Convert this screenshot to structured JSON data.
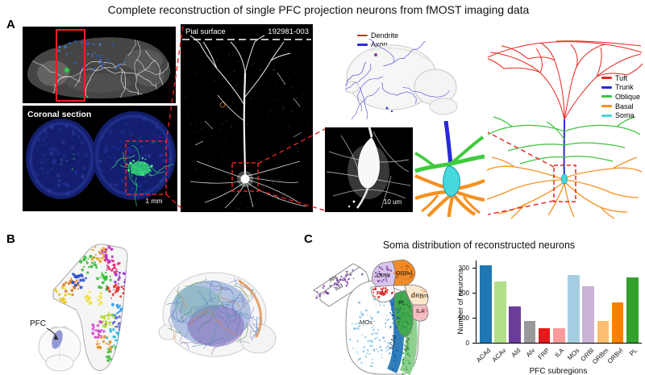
{
  "title": "Complete reconstruction of single PFC projection neurons from fMOST imaging data",
  "panels": {
    "a": "A",
    "b": "B",
    "c": "C"
  },
  "panel_a": {
    "coronal_label": "Coronal section",
    "coronal_scalebar": "1 mm",
    "pial_label": "Pial surface",
    "neuron_id": "192981-003",
    "soma_scalebar": "10 um",
    "fiber_legend": [
      {
        "label": "Dendrite",
        "color": "#e62520"
      },
      {
        "label": "Axon",
        "color": "#2b2bd5"
      }
    ],
    "compartment_legend": [
      {
        "label": "Tuft",
        "color": "#e8261f"
      },
      {
        "label": "Trunk",
        "color": "#2b2bd5"
      },
      {
        "label": "Oblique",
        "color": "#3cc43c"
      },
      {
        "label": "Basal",
        "color": "#f59120"
      },
      {
        "label": "Soma",
        "color": "#45d8dc"
      }
    ]
  },
  "panel_b": {
    "pfc_label": "PFC"
  },
  "panel_c": {
    "title": "Soma distribution of reconstructed neurons",
    "regions": {
      "aiv": "AIv",
      "aid": "AId",
      "orbl": "ORBl",
      "orbvl": "ORBvl",
      "frp": "FRP",
      "orbm": "ORBm",
      "pl": "PL",
      "ila": "ILA",
      "mos": "MOs",
      "acad": "ACAd",
      "acav": "ACAv"
    }
  },
  "chart_data": {
    "type": "bar",
    "title": "Soma distribution of reconstructed neurons",
    "categories": [
      "ACAd",
      "ACAv",
      "AId",
      "AIv",
      "FRP",
      "ILA",
      "MOs",
      "ORBl",
      "ORBm",
      "ORBvl",
      "PL"
    ],
    "values": [
      310,
      246,
      147,
      88,
      57,
      60,
      273,
      226,
      87,
      162,
      262
    ],
    "colors": [
      "#1f78b4",
      "#b2df8a",
      "#6a3d9a",
      "#999999",
      "#e31a1c",
      "#fb9a99",
      "#a6cee3",
      "#cab2d6",
      "#fdbf6f",
      "#ff7f00",
      "#33a02c"
    ],
    "xlabel": "PFC subregions",
    "ylabel": "Number of neurons",
    "yticks": [
      0,
      100,
      200,
      300
    ],
    "ylim": [
      0,
      330
    ],
    "grid": false,
    "legend_position": "none"
  }
}
